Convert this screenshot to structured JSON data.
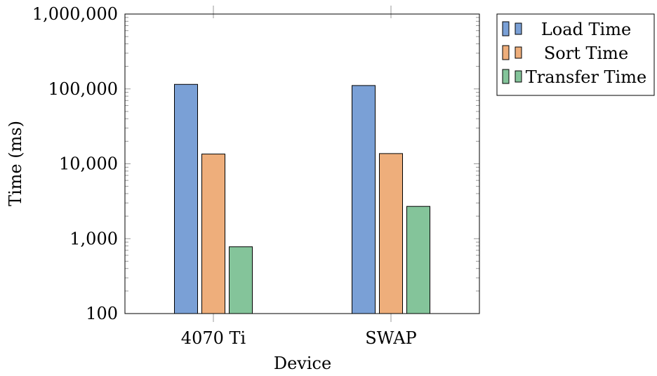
{
  "chart_data": {
    "type": "bar",
    "categories": [
      "4070 Ti",
      "SWAP"
    ],
    "series": [
      {
        "name": "Load Time",
        "values": [
          115000,
          111000
        ],
        "color": "#7aa0d6"
      },
      {
        "name": "Sort Time",
        "values": [
          13500,
          13700
        ],
        "color": "#eeae7b"
      },
      {
        "name": "Transfer Time",
        "values": [
          780,
          2700
        ],
        "color": "#84c49a"
      }
    ],
    "title": "",
    "xlabel": "Device",
    "ylabel": "Time (ms)",
    "yscale": "log",
    "ylim": [
      100,
      1000000
    ],
    "ytick_values": [
      100,
      1000,
      10000,
      100000,
      1000000
    ],
    "ytick_labels": [
      "100",
      "1,000",
      "10,000",
      "100,000",
      "1,000,000"
    ],
    "legend_position": "outside-top-right",
    "grid": false
  }
}
